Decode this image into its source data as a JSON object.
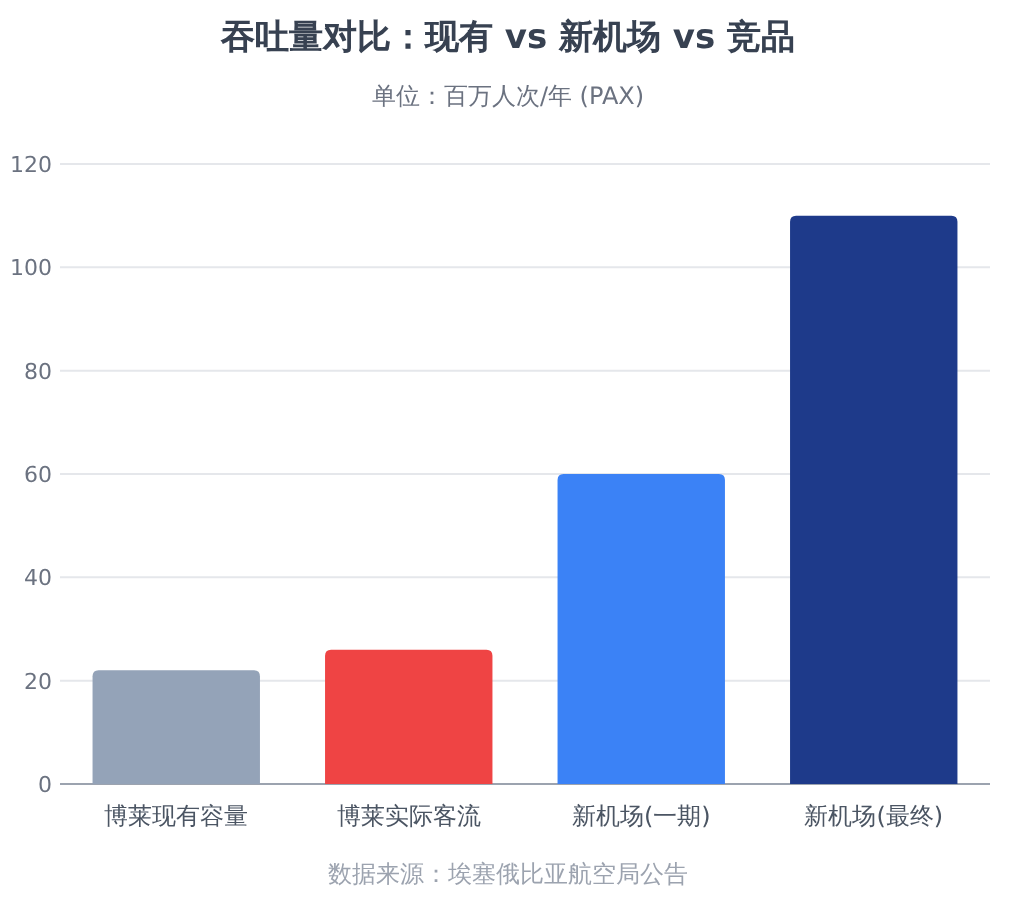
{
  "chart_data": {
    "type": "bar",
    "title": "吞吐量对比：现有 vs 新机场 vs 竞品",
    "subtitle": "单位：百万人次/年 (PAX)",
    "categories": [
      "博莱现有容量",
      "博莱实际客流",
      "新机场(一期)",
      "新机场(最终)"
    ],
    "values": [
      22,
      26,
      60,
      110
    ],
    "colors": [
      "#94a3b8",
      "#ef4444",
      "#3b82f6",
      "#1e3a8a"
    ],
    "ylim": [
      0,
      120
    ],
    "yticks": [
      0,
      20,
      40,
      60,
      80,
      100,
      120
    ],
    "grid": "y",
    "annotations": [
      "数据来源：埃塞俄比亚航空局公告"
    ]
  }
}
